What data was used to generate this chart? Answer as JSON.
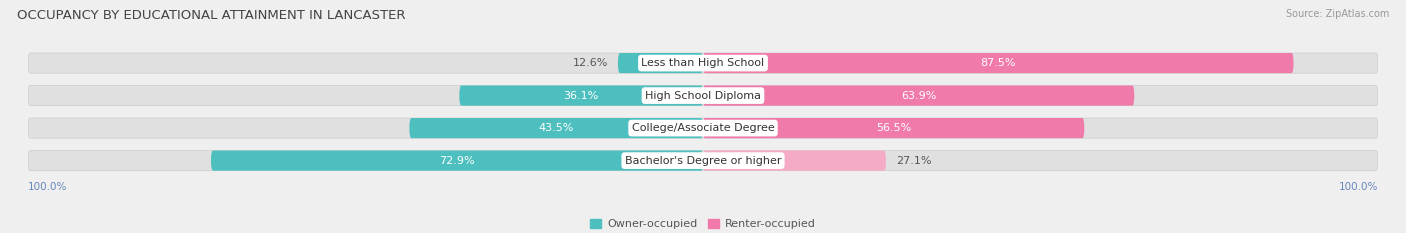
{
  "title": "OCCUPANCY BY EDUCATIONAL ATTAINMENT IN LANCASTER",
  "source": "Source: ZipAtlas.com",
  "categories": [
    "Less than High School",
    "High School Diploma",
    "College/Associate Degree",
    "Bachelor's Degree or higher"
  ],
  "owner_values": [
    12.6,
    36.1,
    43.5,
    72.9
  ],
  "renter_values": [
    87.5,
    63.9,
    56.5,
    27.1
  ],
  "owner_color": "#4dbfbf",
  "renter_color": "#f07aaa",
  "renter_color_light": "#f5aac8",
  "owner_label": "Owner-occupied",
  "renter_label": "Renter-occupied",
  "title_fontsize": 9.5,
  "bar_label_fontsize": 8,
  "category_fontsize": 8,
  "axis_label_fontsize": 7.5,
  "background_color": "#efefef",
  "bar_background_color": "#e0e0e0",
  "bar_background_shadow": "#d0d0d0",
  "title_color": "#444444",
  "source_color": "#999999",
  "axis_tick_color": "#6688bb",
  "bar_height": 0.62,
  "xlim": 100,
  "x_axis_label_left": "100.0%",
  "x_axis_label_right": "100.0%",
  "inside_label_threshold_owner": 20,
  "inside_label_threshold_renter": 35
}
